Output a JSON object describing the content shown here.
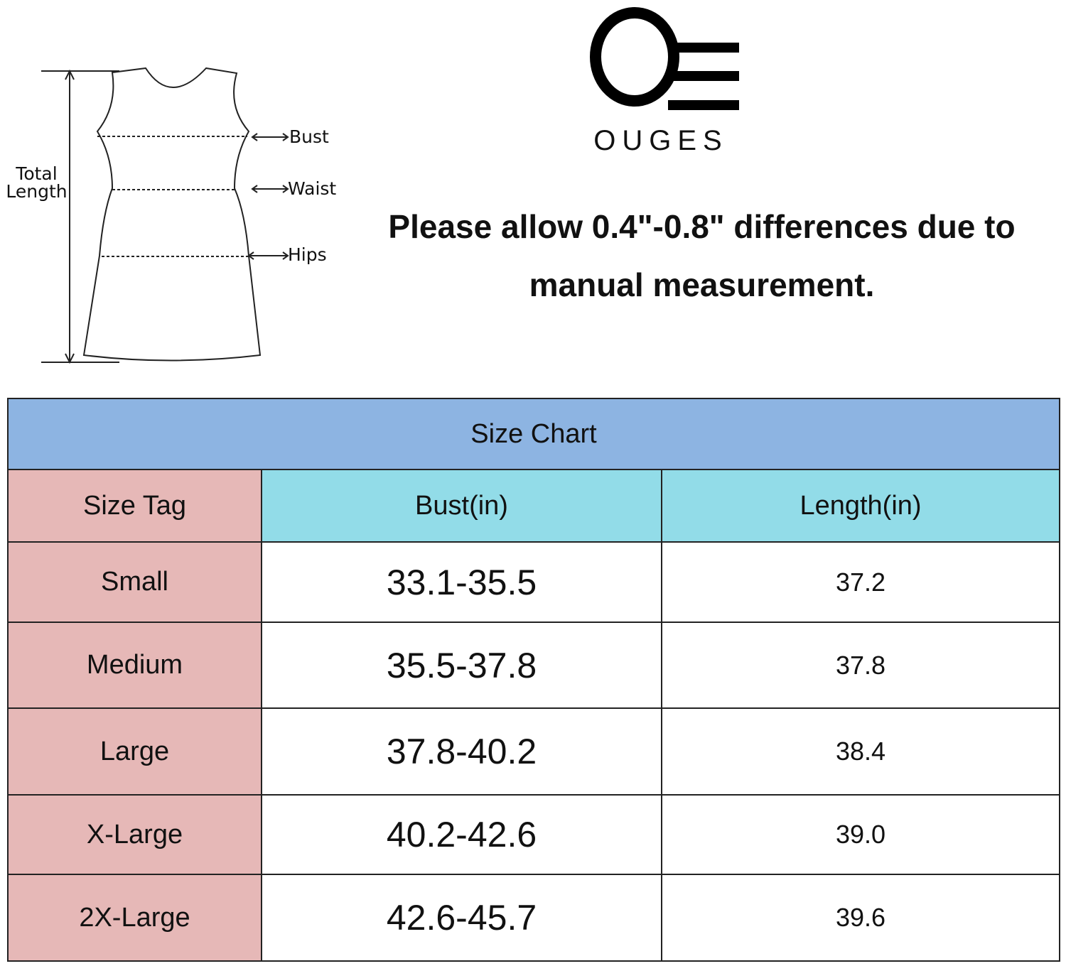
{
  "diagram": {
    "total_length": "Total Length",
    "bust": "Bust",
    "waist": "Waist",
    "hips": "Hips"
  },
  "brand": {
    "name": "OUGES"
  },
  "note": "Please allow 0.4\"-0.8\" differences due to manual measurement.",
  "table": {
    "title": "Size Chart",
    "headers": [
      "Size Tag",
      "Bust(in)",
      "Length(in)"
    ],
    "rows": [
      [
        "Small",
        "33.1-35.5",
        "37.2"
      ],
      [
        "Medium",
        "35.5-37.8",
        "37.8"
      ],
      [
        "Large",
        "37.8-40.2",
        "38.4"
      ],
      [
        "X-Large",
        "40.2-42.6",
        "39.0"
      ],
      [
        "2X-Large",
        "42.6-45.7",
        "39.6"
      ]
    ]
  }
}
